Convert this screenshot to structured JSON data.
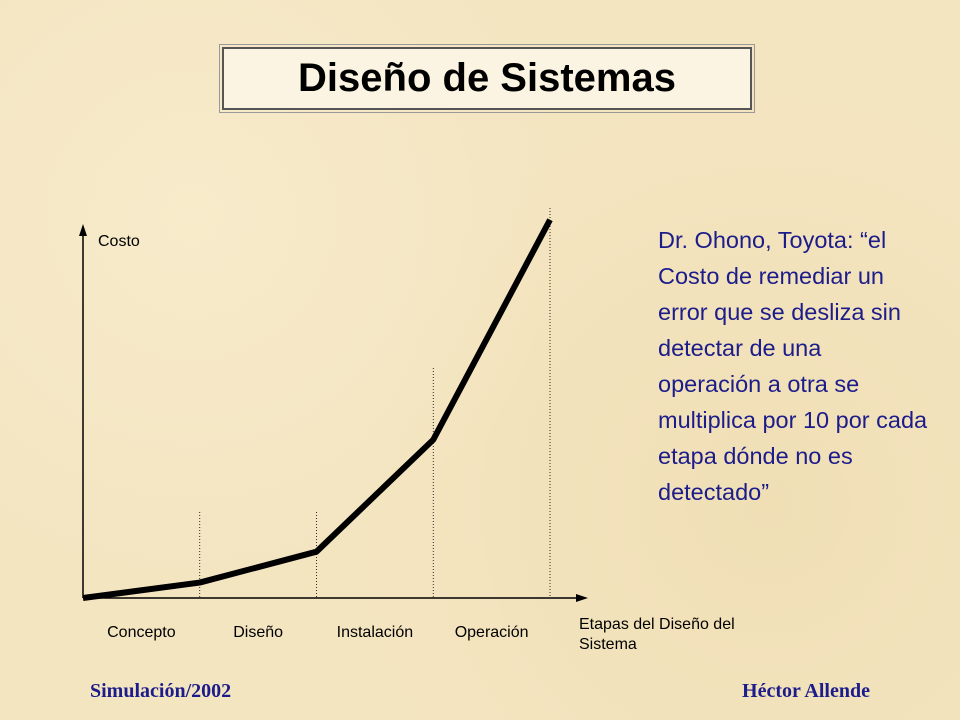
{
  "title": "Diseño de Sistemas",
  "chart_data": {
    "type": "line",
    "y_label": "Costo",
    "x_label": "Etapas del Diseño del Sistema",
    "categories": [
      "Concepto",
      "Diseño",
      "Instalación",
      "Operación"
    ],
    "x": [
      0,
      1,
      2,
      3,
      4
    ],
    "values": [
      0,
      4,
      12,
      41,
      98
    ],
    "xlim": [
      0,
      4
    ],
    "ylim": [
      0,
      100
    ],
    "color": "#000000"
  },
  "quote": "Dr. Ohono, Toyota: “el Costo de remediar un error que se desliza sin detectar de una operación a otra se multiplica por 10 por cada etapa dónde no es detectado”",
  "footer": {
    "left": "Simulación/2002",
    "right": "Héctor Allende"
  }
}
